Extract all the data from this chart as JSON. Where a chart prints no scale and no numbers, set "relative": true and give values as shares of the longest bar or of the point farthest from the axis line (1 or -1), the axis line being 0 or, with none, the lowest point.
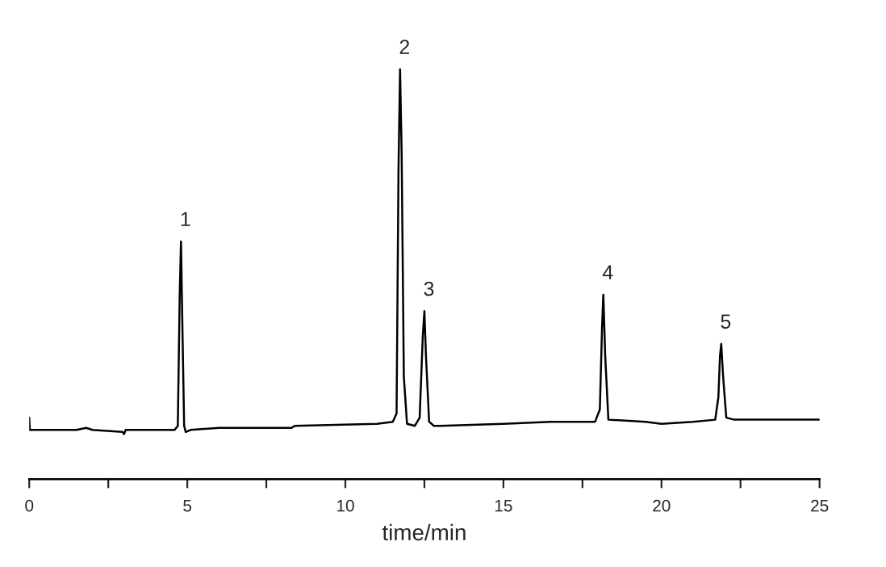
{
  "chart_data": {
    "type": "line",
    "relative": true,
    "xlabel": "time/min",
    "xlim": [
      0,
      25
    ],
    "xticks": [
      0,
      {
        "value": 2.5,
        "label": null
      },
      5,
      {
        "value": 7.5,
        "label": null
      },
      10,
      {
        "value": 12.5,
        "label": null
      },
      15,
      {
        "value": 17.5,
        "label": null
      },
      20,
      {
        "value": 22.5,
        "label": null
      },
      25
    ],
    "series": [
      {
        "color": "#000000",
        "x": [
          0.0,
          0.02,
          1.5,
          1.8,
          2.0,
          2.95,
          3.0,
          3.05,
          4.6,
          4.7,
          4.76,
          4.8,
          4.85,
          4.9,
          4.95,
          5.1,
          6.0,
          8.3,
          8.4,
          11.0,
          11.5,
          11.62,
          11.68,
          11.73,
          11.78,
          11.85,
          11.95,
          12.2,
          12.35,
          12.45,
          12.5,
          12.55,
          12.65,
          12.8,
          13.0,
          15.0,
          16.5,
          17.9,
          18.05,
          18.12,
          18.16,
          18.22,
          18.32,
          19.5,
          20.0,
          21.0,
          21.7,
          21.8,
          21.85,
          21.89,
          21.95,
          22.05,
          22.3,
          25.0
        ],
        "values": [
          0.15,
          0.12,
          0.12,
          0.125,
          0.12,
          0.115,
          0.11,
          0.12,
          0.12,
          0.13,
          0.45,
          0.58,
          0.35,
          0.13,
          0.115,
          0.12,
          0.125,
          0.125,
          0.13,
          0.135,
          0.14,
          0.16,
          0.75,
          1.0,
          0.8,
          0.25,
          0.135,
          0.13,
          0.15,
          0.35,
          0.41,
          0.3,
          0.14,
          0.13,
          0.13,
          0.135,
          0.14,
          0.14,
          0.17,
          0.37,
          0.45,
          0.3,
          0.145,
          0.14,
          0.135,
          0.14,
          0.145,
          0.2,
          0.3,
          0.33,
          0.25,
          0.15,
          0.145,
          0.145
        ]
      }
    ],
    "annotations": [
      {
        "text": "1",
        "x": 4.8,
        "y": 0.58
      },
      {
        "text": "2",
        "x": 11.73,
        "y": 1.0
      },
      {
        "text": "3",
        "x": 12.5,
        "y": 0.41
      },
      {
        "text": "4",
        "x": 18.16,
        "y": 0.45
      },
      {
        "text": "5",
        "x": 21.89,
        "y": 0.33
      }
    ]
  }
}
